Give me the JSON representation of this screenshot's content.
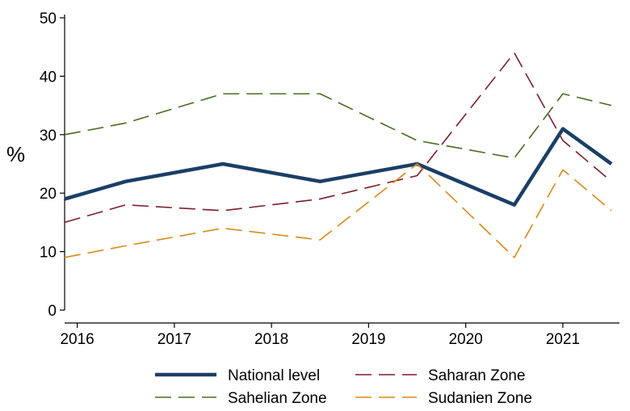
{
  "chart_data": {
    "type": "line",
    "title": "",
    "xlabel": "",
    "ylabel": "%",
    "ylim": [
      0,
      50
    ],
    "yticks": [
      0,
      10,
      20,
      30,
      40,
      50
    ],
    "xticks": [
      {
        "label": "2016",
        "x": 0
      },
      {
        "label": "2017",
        "x": 1
      },
      {
        "label": "2018",
        "x": 2
      },
      {
        "label": "2019",
        "x": 3
      },
      {
        "label": "2020",
        "x": 4
      },
      {
        "label": "2021",
        "x": 5
      }
    ],
    "xlim": [
      -0.13,
      5.5
    ],
    "grid": false,
    "legend_position": "bottom",
    "series": [
      {
        "name": "National level",
        "key": "national",
        "color": "#1b3f66",
        "style": "solid",
        "x": [
          -0.13,
          0.5,
          1.5,
          2.5,
          3.5,
          4.5,
          5.0,
          5.5
        ],
        "values": [
          19,
          22,
          25,
          22,
          25,
          18,
          31,
          25
        ]
      },
      {
        "name": "Saharan Zone",
        "key": "saharan",
        "color": "#7a1f2b",
        "style": "dashed",
        "x": [
          -0.13,
          0.5,
          1.5,
          2.5,
          3.5,
          4.5,
          5.0,
          5.5
        ],
        "values": [
          15,
          18,
          17,
          19,
          23,
          44,
          29,
          22
        ]
      },
      {
        "name": "Sahelian Zone",
        "key": "sahelian",
        "color": "#4a6b22",
        "style": "dashed",
        "x": [
          -0.13,
          0.5,
          1.5,
          2.5,
          3.5,
          4.5,
          5.0,
          5.5
        ],
        "values": [
          30,
          32,
          37,
          37,
          29,
          26,
          37,
          35
        ]
      },
      {
        "name": "Sudanien Zone",
        "key": "sudanien",
        "color": "#d98a1a",
        "style": "dashed",
        "x": [
          -0.13,
          0.5,
          1.5,
          2.5,
          3.5,
          4.5,
          5.0,
          5.5
        ],
        "values": [
          9,
          11,
          14,
          12,
          25,
          9,
          24,
          17
        ]
      }
    ]
  }
}
